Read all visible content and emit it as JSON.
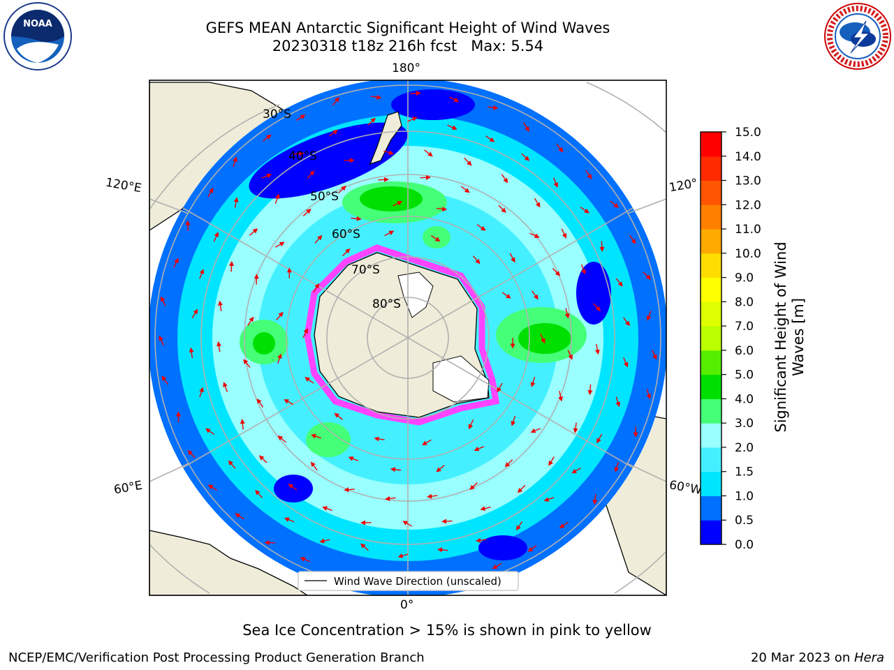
{
  "header": {
    "title_line1": "GEFS MEAN Antarctic Significant Height of Wind Waves",
    "title_line2": "20230318 t18z 216h fcst   Max: 5.54"
  },
  "logos": {
    "left": {
      "icon": "noaa-logo",
      "text": "NOAA"
    },
    "right": {
      "icon": "nws-logo",
      "text": "NATIONAL WEATHER SERVICE"
    }
  },
  "map": {
    "lon_labels": {
      "top": "180°",
      "bottom": "0°",
      "left_upper": "120°E",
      "left_lower": "60°E",
      "right_upper": "120°",
      "right_lower": "60°W"
    },
    "lat_labels": [
      "30°S",
      "40°S",
      "50°S",
      "60°S",
      "70°S",
      "80°S"
    ],
    "legend_label": "Wind Wave Direction (unscaled)"
  },
  "colorbar": {
    "label_line1": "Significant Height of Wind",
    "label_line2": "Waves [m]",
    "ticks": [
      "0.0",
      "0.5",
      "1.0",
      "1.5",
      "2.0",
      "3.0",
      "4.0",
      "5.0",
      "6.0",
      "7.0",
      "8.0",
      "9.0",
      "10.0",
      "11.0",
      "12.0",
      "13.0",
      "14.0",
      "15.0"
    ],
    "colors": [
      "#0000ff",
      "#0070ff",
      "#00e5ff",
      "#44f0ff",
      "#99ffff",
      "#44ff77",
      "#00e000",
      "#55ee00",
      "#bbff00",
      "#ddff00",
      "#ffff00",
      "#ffdd00",
      "#ffaa00",
      "#ff8000",
      "#ff5500",
      "#ff2a00",
      "#ff0000"
    ]
  },
  "note": "Sea Ice Concentration > 15% is shown in pink to yellow",
  "footer": {
    "left": "NCEP/EMC/Verification Post Processing Product Generation Branch",
    "right_date": "20 Mar 2023 on ",
    "right_machine": "Hera"
  }
}
